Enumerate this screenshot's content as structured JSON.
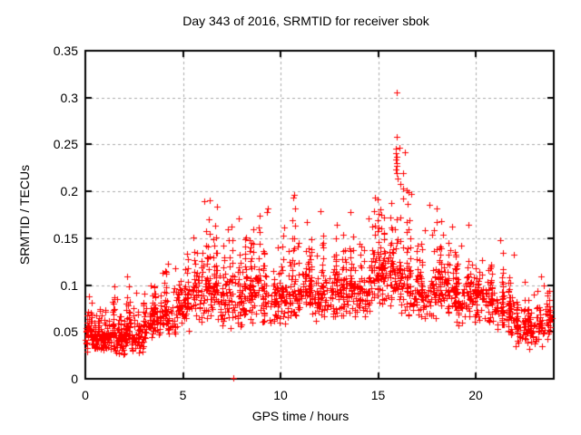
{
  "page": {
    "background": "#ffffff"
  },
  "chart_data": {
    "type": "scatter",
    "title": "Day 343 of 2016, SRMTID for receiver sbok",
    "xlabel": "GPS time / hours",
    "ylabel": "SRMTID / TECUs",
    "xlim": [
      0,
      24
    ],
    "ylim": [
      0,
      0.35
    ],
    "xtick_values": [
      0,
      5,
      10,
      15,
      20
    ],
    "xtick_labels": [
      "0",
      "5",
      "10",
      "15",
      "20"
    ],
    "ytick_values": [
      0,
      0.05,
      0.1,
      0.15,
      0.2,
      0.25,
      0.3,
      0.35
    ],
    "ytick_labels": [
      "0",
      "0.05",
      "0.1",
      "0.15",
      "0.2",
      "0.25",
      "0.3",
      "0.35"
    ],
    "grid": {
      "enabled": true,
      "color": "#aaaaaa",
      "dash": [
        3,
        3
      ],
      "at": "major-ticks"
    },
    "legend": "none",
    "border_color": "#000000",
    "text_color": "#000000",
    "series": [
      {
        "name": "SRMTID",
        "marker": "plus",
        "marker_color": "#ff0000",
        "marker_size_px": 7,
        "approx_point_count": 2000,
        "seed": 2016343,
        "density_bins_format": [
          "hour_start",
          "hour_end",
          "n_points",
          "center_TECU",
          "halfwidth_TECU",
          "max_TECU"
        ],
        "density_bins": [
          [
            0.0,
            0.5,
            36,
            0.045,
            0.02,
            0.09
          ],
          [
            0.5,
            1.0,
            36,
            0.04,
            0.018,
            0.075
          ],
          [
            1.0,
            1.5,
            34,
            0.045,
            0.02,
            0.1
          ],
          [
            1.5,
            2.0,
            34,
            0.04,
            0.018,
            0.085
          ],
          [
            2.0,
            2.5,
            32,
            0.045,
            0.02,
            0.11
          ],
          [
            2.5,
            3.0,
            30,
            0.04,
            0.018,
            0.095
          ],
          [
            3.0,
            3.5,
            24,
            0.055,
            0.025,
            0.1
          ],
          [
            3.5,
            4.0,
            24,
            0.06,
            0.025,
            0.115
          ],
          [
            4.0,
            4.5,
            26,
            0.065,
            0.025,
            0.125
          ],
          [
            4.5,
            5.0,
            26,
            0.07,
            0.027,
            0.12
          ],
          [
            5.0,
            5.5,
            28,
            0.075,
            0.028,
            0.135
          ],
          [
            5.5,
            6.0,
            28,
            0.085,
            0.03,
            0.16
          ],
          [
            6.0,
            6.5,
            30,
            0.09,
            0.035,
            0.19
          ],
          [
            6.5,
            7.0,
            30,
            0.09,
            0.035,
            0.185
          ],
          [
            7.0,
            7.5,
            26,
            0.08,
            0.03,
            0.16
          ],
          [
            7.5,
            8.0,
            26,
            0.085,
            0.033,
            0.175
          ],
          [
            8.0,
            8.5,
            26,
            0.085,
            0.03,
            0.16
          ],
          [
            8.5,
            9.0,
            26,
            0.09,
            0.03,
            0.175
          ],
          [
            9.0,
            9.5,
            26,
            0.085,
            0.03,
            0.18
          ],
          [
            9.5,
            10.0,
            26,
            0.08,
            0.028,
            0.14
          ],
          [
            10.0,
            10.5,
            28,
            0.085,
            0.03,
            0.165
          ],
          [
            10.5,
            11.0,
            28,
            0.09,
            0.035,
            0.195
          ],
          [
            11.0,
            11.5,
            28,
            0.09,
            0.032,
            0.17
          ],
          [
            11.5,
            12.0,
            28,
            0.085,
            0.03,
            0.16
          ],
          [
            12.0,
            12.5,
            28,
            0.09,
            0.032,
            0.18
          ],
          [
            12.5,
            13.0,
            28,
            0.09,
            0.03,
            0.165
          ],
          [
            13.0,
            13.5,
            28,
            0.09,
            0.03,
            0.17
          ],
          [
            13.5,
            14.0,
            28,
            0.095,
            0.032,
            0.18
          ],
          [
            14.0,
            14.5,
            28,
            0.09,
            0.032,
            0.175
          ],
          [
            14.5,
            15.0,
            30,
            0.1,
            0.035,
            0.195
          ],
          [
            15.0,
            15.5,
            34,
            0.105,
            0.035,
            0.185
          ],
          [
            15.5,
            16.0,
            34,
            0.11,
            0.04,
            0.21
          ],
          [
            16.0,
            16.5,
            30,
            0.1,
            0.04,
            0.245
          ],
          [
            16.5,
            17.0,
            26,
            0.09,
            0.035,
            0.2
          ],
          [
            17.0,
            17.5,
            26,
            0.085,
            0.03,
            0.16
          ],
          [
            17.5,
            18.0,
            26,
            0.09,
            0.033,
            0.185
          ],
          [
            18.0,
            18.5,
            28,
            0.095,
            0.03,
            0.17
          ],
          [
            18.5,
            19.0,
            28,
            0.09,
            0.03,
            0.165
          ],
          [
            19.0,
            19.5,
            26,
            0.08,
            0.028,
            0.145
          ],
          [
            19.5,
            20.0,
            26,
            0.085,
            0.03,
            0.165
          ],
          [
            20.0,
            20.5,
            26,
            0.085,
            0.028,
            0.145
          ],
          [
            20.5,
            21.0,
            26,
            0.08,
            0.028,
            0.135
          ],
          [
            21.0,
            21.5,
            26,
            0.07,
            0.026,
            0.15
          ],
          [
            21.5,
            22.0,
            26,
            0.065,
            0.025,
            0.135
          ],
          [
            22.0,
            22.5,
            26,
            0.055,
            0.022,
            0.105
          ],
          [
            22.5,
            23.0,
            26,
            0.05,
            0.02,
            0.09
          ],
          [
            23.0,
            23.5,
            24,
            0.055,
            0.022,
            0.11
          ],
          [
            23.5,
            23.9,
            20,
            0.06,
            0.022,
            0.1
          ]
        ],
        "notable_points": [
          [
            7.57,
            0.001
          ],
          [
            15.95,
            0.306
          ],
          [
            15.97,
            0.258
          ],
          [
            15.9,
            0.246
          ],
          [
            15.93,
            0.241
          ],
          [
            15.96,
            0.237
          ],
          [
            15.9,
            0.234
          ],
          [
            15.94,
            0.23
          ],
          [
            15.97,
            0.227
          ],
          [
            15.91,
            0.223
          ],
          [
            15.95,
            0.219
          ],
          [
            16.0,
            0.214
          ],
          [
            16.1,
            0.247
          ],
          [
            16.12,
            0.208
          ],
          [
            16.3,
            0.203
          ],
          [
            16.55,
            0.199
          ],
          [
            6.35,
            0.19
          ],
          [
            10.68,
            0.196
          ],
          [
            14.82,
            0.193
          ],
          [
            17.62,
            0.186
          ],
          [
            9.35,
            0.182
          ]
        ]
      }
    ]
  }
}
